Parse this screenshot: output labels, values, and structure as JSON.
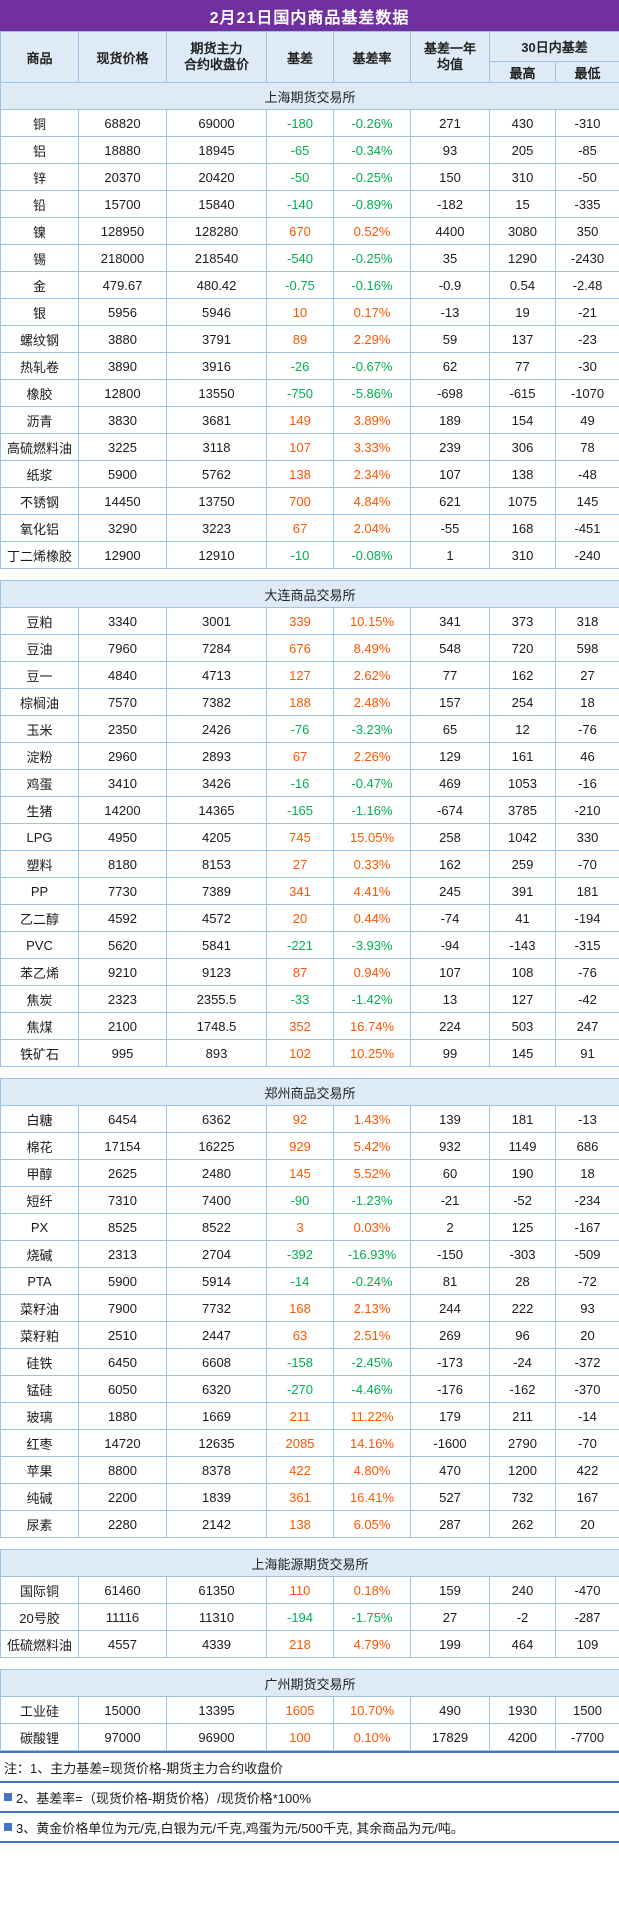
{
  "title": "2月21日国内商品基差数据",
  "header": {
    "commodity": "商品",
    "spot_price": "现货价格",
    "futures_close": [
      "期货主力",
      "合约收盘价"
    ],
    "basis": "基差",
    "basis_rate": "基差率",
    "basis_year_avg": [
      "基差一年",
      "均值"
    ],
    "basis_30d": "30日内基差",
    "high": "最高",
    "low": "最低"
  },
  "chart_data": {
    "type": "table",
    "title": "2月21日国内商品基差数据",
    "columns": [
      "商品",
      "现货价格",
      "期货主力合约收盘价",
      "基差",
      "基差率",
      "基差一年均值",
      "30日内基差-最高",
      "30日内基差-最低"
    ],
    "sections": [
      {
        "exchange": "上海期货交易所",
        "rows": [
          [
            "铜",
            "68820",
            "69000",
            "-180",
            "-0.26%",
            "271",
            "430",
            "-310"
          ],
          [
            "铝",
            "18880",
            "18945",
            "-65",
            "-0.34%",
            "93",
            "205",
            "-85"
          ],
          [
            "锌",
            "20370",
            "20420",
            "-50",
            "-0.25%",
            "150",
            "310",
            "-50"
          ],
          [
            "铅",
            "15700",
            "15840",
            "-140",
            "-0.89%",
            "-182",
            "15",
            "-335"
          ],
          [
            "镍",
            "128950",
            "128280",
            "670",
            "0.52%",
            "4400",
            "3080",
            "350"
          ],
          [
            "锡",
            "218000",
            "218540",
            "-540",
            "-0.25%",
            "35",
            "1290",
            "-2430"
          ],
          [
            "金",
            "479.67",
            "480.42",
            "-0.75",
            "-0.16%",
            "-0.9",
            "0.54",
            "-2.48"
          ],
          [
            "银",
            "5956",
            "5946",
            "10",
            "0.17%",
            "-13",
            "19",
            "-21"
          ],
          [
            "螺纹钢",
            "3880",
            "3791",
            "89",
            "2.29%",
            "59",
            "137",
            "-23"
          ],
          [
            "热轧卷",
            "3890",
            "3916",
            "-26",
            "-0.67%",
            "62",
            "77",
            "-30"
          ],
          [
            "橡胶",
            "12800",
            "13550",
            "-750",
            "-5.86%",
            "-698",
            "-615",
            "-1070"
          ],
          [
            "沥青",
            "3830",
            "3681",
            "149",
            "3.89%",
            "189",
            "154",
            "49"
          ],
          [
            "高硫燃料油",
            "3225",
            "3118",
            "107",
            "3.33%",
            "239",
            "306",
            "78"
          ],
          [
            "纸浆",
            "5900",
            "5762",
            "138",
            "2.34%",
            "107",
            "138",
            "-48"
          ],
          [
            "不锈钢",
            "14450",
            "13750",
            "700",
            "4.84%",
            "621",
            "1075",
            "145"
          ],
          [
            "氧化铝",
            "3290",
            "3223",
            "67",
            "2.04%",
            "-55",
            "168",
            "-451"
          ],
          [
            "丁二烯橡胶",
            "12900",
            "12910",
            "-10",
            "-0.08%",
            "1",
            "310",
            "-240"
          ]
        ]
      },
      {
        "exchange": "大连商品交易所",
        "rows": [
          [
            "豆粕",
            "3340",
            "3001",
            "339",
            "10.15%",
            "341",
            "373",
            "318"
          ],
          [
            "豆油",
            "7960",
            "7284",
            "676",
            "8.49%",
            "548",
            "720",
            "598"
          ],
          [
            "豆一",
            "4840",
            "4713",
            "127",
            "2.62%",
            "77",
            "162",
            "27"
          ],
          [
            "棕榈油",
            "7570",
            "7382",
            "188",
            "2.48%",
            "157",
            "254",
            "18"
          ],
          [
            "玉米",
            "2350",
            "2426",
            "-76",
            "-3.23%",
            "65",
            "12",
            "-76"
          ],
          [
            "淀粉",
            "2960",
            "2893",
            "67",
            "2.26%",
            "129",
            "161",
            "46"
          ],
          [
            "鸡蛋",
            "3410",
            "3426",
            "-16",
            "-0.47%",
            "469",
            "1053",
            "-16"
          ],
          [
            "生猪",
            "14200",
            "14365",
            "-165",
            "-1.16%",
            "-674",
            "3785",
            "-210"
          ],
          [
            "LPG",
            "4950",
            "4205",
            "745",
            "15.05%",
            "258",
            "1042",
            "330"
          ],
          [
            "塑料",
            "8180",
            "8153",
            "27",
            "0.33%",
            "162",
            "259",
            "-70"
          ],
          [
            "PP",
            "7730",
            "7389",
            "341",
            "4.41%",
            "245",
            "391",
            "181"
          ],
          [
            "乙二醇",
            "4592",
            "4572",
            "20",
            "0.44%",
            "-74",
            "41",
            "-194"
          ],
          [
            "PVC",
            "5620",
            "5841",
            "-221",
            "-3.93%",
            "-94",
            "-143",
            "-315"
          ],
          [
            "苯乙烯",
            "9210",
            "9123",
            "87",
            "0.94%",
            "107",
            "108",
            "-76"
          ],
          [
            "焦炭",
            "2323",
            "2355.5",
            "-33",
            "-1.42%",
            "13",
            "127",
            "-42"
          ],
          [
            "焦煤",
            "2100",
            "1748.5",
            "352",
            "16.74%",
            "224",
            "503",
            "247"
          ],
          [
            "铁矿石",
            "995",
            "893",
            "102",
            "10.25%",
            "99",
            "145",
            "91"
          ]
        ]
      },
      {
        "exchange": "郑州商品交易所",
        "rows": [
          [
            "白糖",
            "6454",
            "6362",
            "92",
            "1.43%",
            "139",
            "181",
            "-13"
          ],
          [
            "棉花",
            "17154",
            "16225",
            "929",
            "5.42%",
            "932",
            "1149",
            "686"
          ],
          [
            "甲醇",
            "2625",
            "2480",
            "145",
            "5.52%",
            "60",
            "190",
            "18"
          ],
          [
            "短纤",
            "7310",
            "7400",
            "-90",
            "-1.23%",
            "-21",
            "-52",
            "-234"
          ],
          [
            "PX",
            "8525",
            "8522",
            "3",
            "0.03%",
            "2",
            "125",
            "-167"
          ],
          [
            "烧碱",
            "2313",
            "2704",
            "-392",
            "-16.93%",
            "-150",
            "-303",
            "-509"
          ],
          [
            "PTA",
            "5900",
            "5914",
            "-14",
            "-0.24%",
            "81",
            "28",
            "-72"
          ],
          [
            "菜籽油",
            "7900",
            "7732",
            "168",
            "2.13%",
            "244",
            "222",
            "93"
          ],
          [
            "菜籽粕",
            "2510",
            "2447",
            "63",
            "2.51%",
            "269",
            "96",
            "20"
          ],
          [
            "硅铁",
            "6450",
            "6608",
            "-158",
            "-2.45%",
            "-173",
            "-24",
            "-372"
          ],
          [
            "锰硅",
            "6050",
            "6320",
            "-270",
            "-4.46%",
            "-176",
            "-162",
            "-370"
          ],
          [
            "玻璃",
            "1880",
            "1669",
            "211",
            "11.22%",
            "179",
            "211",
            "-14"
          ],
          [
            "红枣",
            "14720",
            "12635",
            "2085",
            "14.16%",
            "-1600",
            "2790",
            "-70"
          ],
          [
            "苹果",
            "8800",
            "8378",
            "422",
            "4.80%",
            "470",
            "1200",
            "422"
          ],
          [
            "纯碱",
            "2200",
            "1839",
            "361",
            "16.41%",
            "527",
            "732",
            "167"
          ],
          [
            "尿素",
            "2280",
            "2142",
            "138",
            "6.05%",
            "287",
            "262",
            "20"
          ]
        ]
      },
      {
        "exchange": "上海能源期货交易所",
        "rows": [
          [
            "国际铜",
            "61460",
            "61350",
            "110",
            "0.18%",
            "159",
            "240",
            "-470"
          ],
          [
            "20号胶",
            "11116",
            "11310",
            "-194",
            "-1.75%",
            "27",
            "-2",
            "-287"
          ],
          [
            "低硫燃料油",
            "4557",
            "4339",
            "218",
            "4.79%",
            "199",
            "464",
            "109"
          ]
        ]
      },
      {
        "exchange": "广州期货交易所",
        "rows": [
          [
            "工业硅",
            "15000",
            "13395",
            "1605",
            "10.70%",
            "490",
            "1930",
            "1500"
          ],
          [
            "碳酸锂",
            "97000",
            "96900",
            "100",
            "0.10%",
            "17829",
            "4200",
            "-7700"
          ]
        ]
      }
    ]
  },
  "notes": [
    "注：1、主力基差=现货价格-期货主力合约收盘价",
    "2、基差率=（现货价格-期货价格）/现货价格*100%",
    "3、黄金价格单位为元/克,白银为元/千克,鸡蛋为元/500千克, 其余商品为元/吨。"
  ],
  "colors": {
    "positive": "#FF5500",
    "negative": "#00B050",
    "title_bg": "#7030A0",
    "header_bg": "#DEEBF7",
    "section_bg": "#DEEBF7",
    "border": "#9DC3E6",
    "note_line": "#4472C4"
  }
}
